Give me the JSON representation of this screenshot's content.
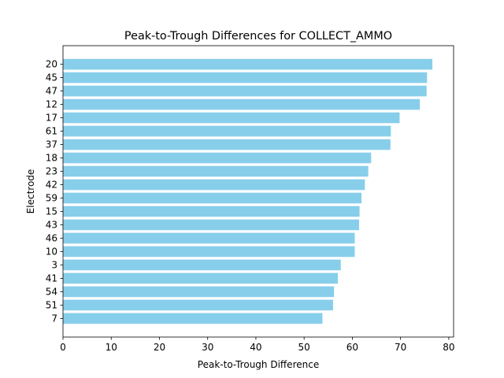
{
  "chart_data": {
    "type": "bar",
    "orientation": "horizontal",
    "title": "Peak-to-Trough Differences for COLLECT_AMMO",
    "xlabel": "Peak-to-Trough Difference",
    "ylabel": "Electrode",
    "xlim": [
      0,
      81
    ],
    "xticks": [
      0,
      10,
      20,
      30,
      40,
      50,
      60,
      70,
      80
    ],
    "categories": [
      "20",
      "45",
      "47",
      "12",
      "17",
      "61",
      "37",
      "18",
      "23",
      "42",
      "59",
      "15",
      "43",
      "46",
      "10",
      "3",
      "41",
      "54",
      "51",
      "7"
    ],
    "values": [
      76.6,
      75.5,
      75.4,
      74.0,
      69.8,
      68.0,
      67.9,
      63.9,
      63.3,
      62.6,
      61.9,
      61.5,
      61.4,
      60.5,
      60.5,
      57.6,
      57.0,
      56.2,
      56.0,
      53.8
    ],
    "bar_color": "#87ceeb",
    "grid": false,
    "legend": "none"
  }
}
